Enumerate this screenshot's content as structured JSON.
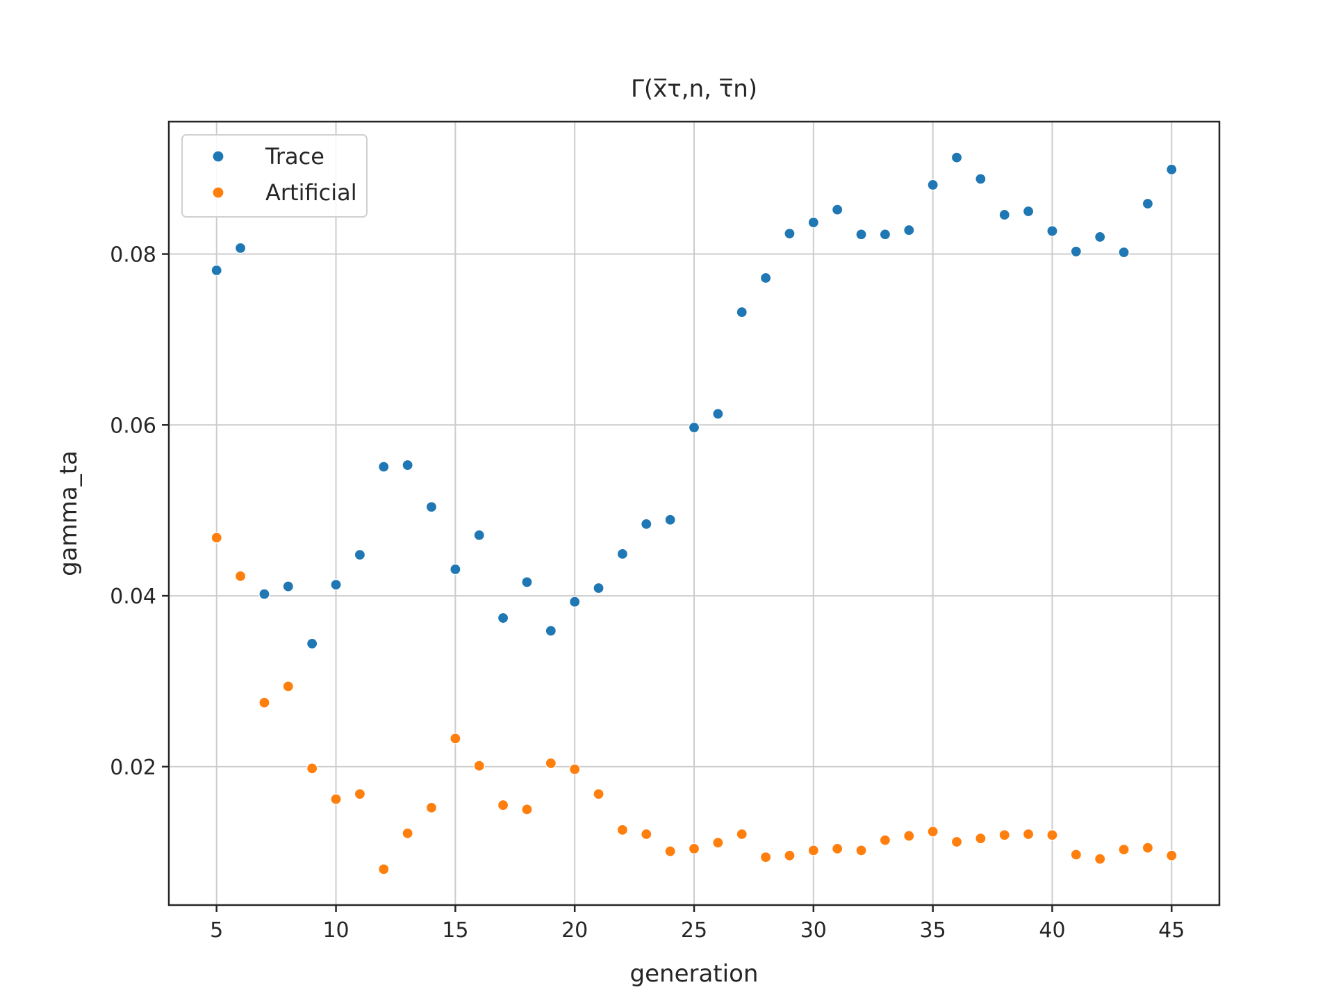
{
  "chart_data": {
    "type": "scatter",
    "title": "Γ(x̅τ,n, τ̅n)",
    "xlabel": "generation",
    "ylabel": "gamma_ta",
    "xlim": [
      3,
      47
    ],
    "ylim": [
      0.0038,
      0.0955
    ],
    "xticks": [
      5,
      10,
      15,
      20,
      25,
      30,
      35,
      40,
      45
    ],
    "yticks": [
      0.02,
      0.04,
      0.06,
      0.08
    ],
    "ytick_labels": [
      "0.02",
      "0.04",
      "0.06",
      "0.08"
    ],
    "grid": true,
    "legend_position": "top-left",
    "series": [
      {
        "name": "Trace",
        "color": "#1f77b4",
        "x": [
          5,
          6,
          7,
          8,
          9,
          10,
          11,
          12,
          13,
          14,
          15,
          16,
          17,
          18,
          19,
          20,
          21,
          22,
          23,
          24,
          25,
          26,
          27,
          28,
          29,
          30,
          31,
          32,
          33,
          34,
          35,
          36,
          37,
          38,
          39,
          40,
          41,
          42,
          43,
          44,
          45
        ],
        "y": [
          0.0781,
          0.0807,
          0.0402,
          0.0411,
          0.0344,
          0.0413,
          0.0448,
          0.0551,
          0.0553,
          0.0504,
          0.0431,
          0.0471,
          0.0374,
          0.0416,
          0.0359,
          0.0393,
          0.0409,
          0.0449,
          0.0484,
          0.0489,
          0.0597,
          0.0613,
          0.0732,
          0.0772,
          0.0824,
          0.0837,
          0.0852,
          0.0823,
          0.0823,
          0.0828,
          0.0881,
          0.0913,
          0.0888,
          0.0846,
          0.085,
          0.0827,
          0.0803,
          0.082,
          0.0802,
          0.0859,
          0.0899
        ]
      },
      {
        "name": "Artificial",
        "color": "#ff7f0e",
        "x": [
          5,
          6,
          7,
          8,
          9,
          10,
          11,
          12,
          13,
          14,
          15,
          16,
          17,
          18,
          19,
          20,
          21,
          22,
          23,
          24,
          25,
          26,
          27,
          28,
          29,
          30,
          31,
          32,
          33,
          34,
          35,
          36,
          37,
          38,
          39,
          40,
          41,
          42,
          43,
          44,
          45
        ],
        "y": [
          0.0468,
          0.0423,
          0.0275,
          0.0294,
          0.0198,
          0.0162,
          0.0168,
          0.008,
          0.0122,
          0.0152,
          0.0233,
          0.0201,
          0.0155,
          0.015,
          0.0204,
          0.0197,
          0.0168,
          0.0126,
          0.0121,
          0.0101,
          0.0104,
          0.0111,
          0.0121,
          0.0094,
          0.0096,
          0.0102,
          0.0104,
          0.0102,
          0.0114,
          0.0119,
          0.0124,
          0.0112,
          0.0116,
          0.012,
          0.0121,
          0.012,
          0.0097,
          0.0092,
          0.0103,
          0.0105,
          0.0096
        ]
      }
    ]
  }
}
